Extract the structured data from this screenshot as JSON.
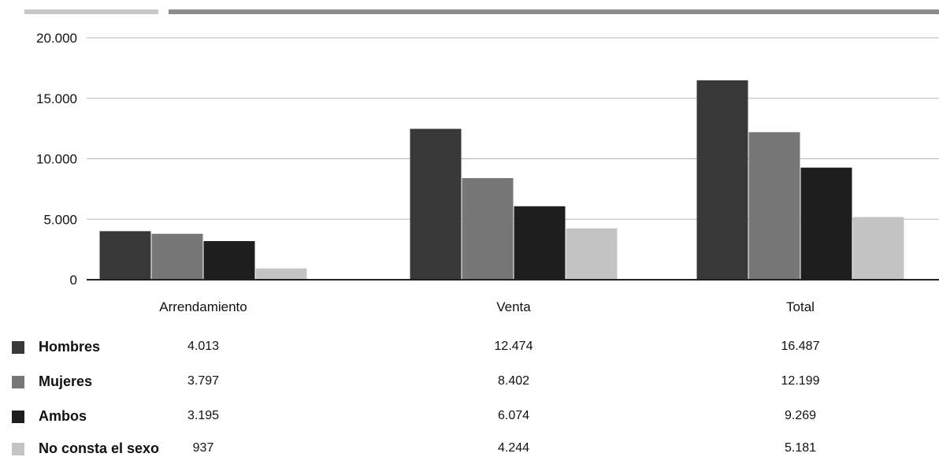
{
  "chart_data": {
    "type": "bar",
    "categories": [
      "Arrendamiento",
      "Venta",
      "Total"
    ],
    "series": [
      {
        "name": "Hombres",
        "values": [
          4013,
          12474,
          16487
        ],
        "labels": [
          "4.013",
          "12.474",
          "16.487"
        ],
        "color": "#383838"
      },
      {
        "name": "Mujeres",
        "values": [
          3797,
          8402,
          12199
        ],
        "labels": [
          "3.797",
          "8.402",
          "12.199"
        ],
        "color": "#777777"
      },
      {
        "name": "Ambos",
        "values": [
          3195,
          6074,
          9269
        ],
        "labels": [
          "3.195",
          "6.074",
          "9.269"
        ],
        "color": "#1e1e1e"
      },
      {
        "name": "No consta el sexo",
        "values": [
          937,
          4244,
          5181
        ],
        "labels": [
          "937",
          "4.244",
          "5.181"
        ],
        "color": "#c4c4c4"
      }
    ],
    "ylim": [
      0,
      20000
    ],
    "yticks": [
      0,
      5000,
      10000,
      15000,
      20000
    ],
    "ytick_labels": [
      "0",
      "5.000",
      "10.000",
      "15.000",
      "20.000"
    ],
    "grid": true,
    "legend": "bottom-table",
    "title": "",
    "xlabel": "",
    "ylabel": ""
  },
  "decor": {
    "top_bar_left_color": "#c8c8c8",
    "top_bar_right_color": "#8c8c8c"
  }
}
